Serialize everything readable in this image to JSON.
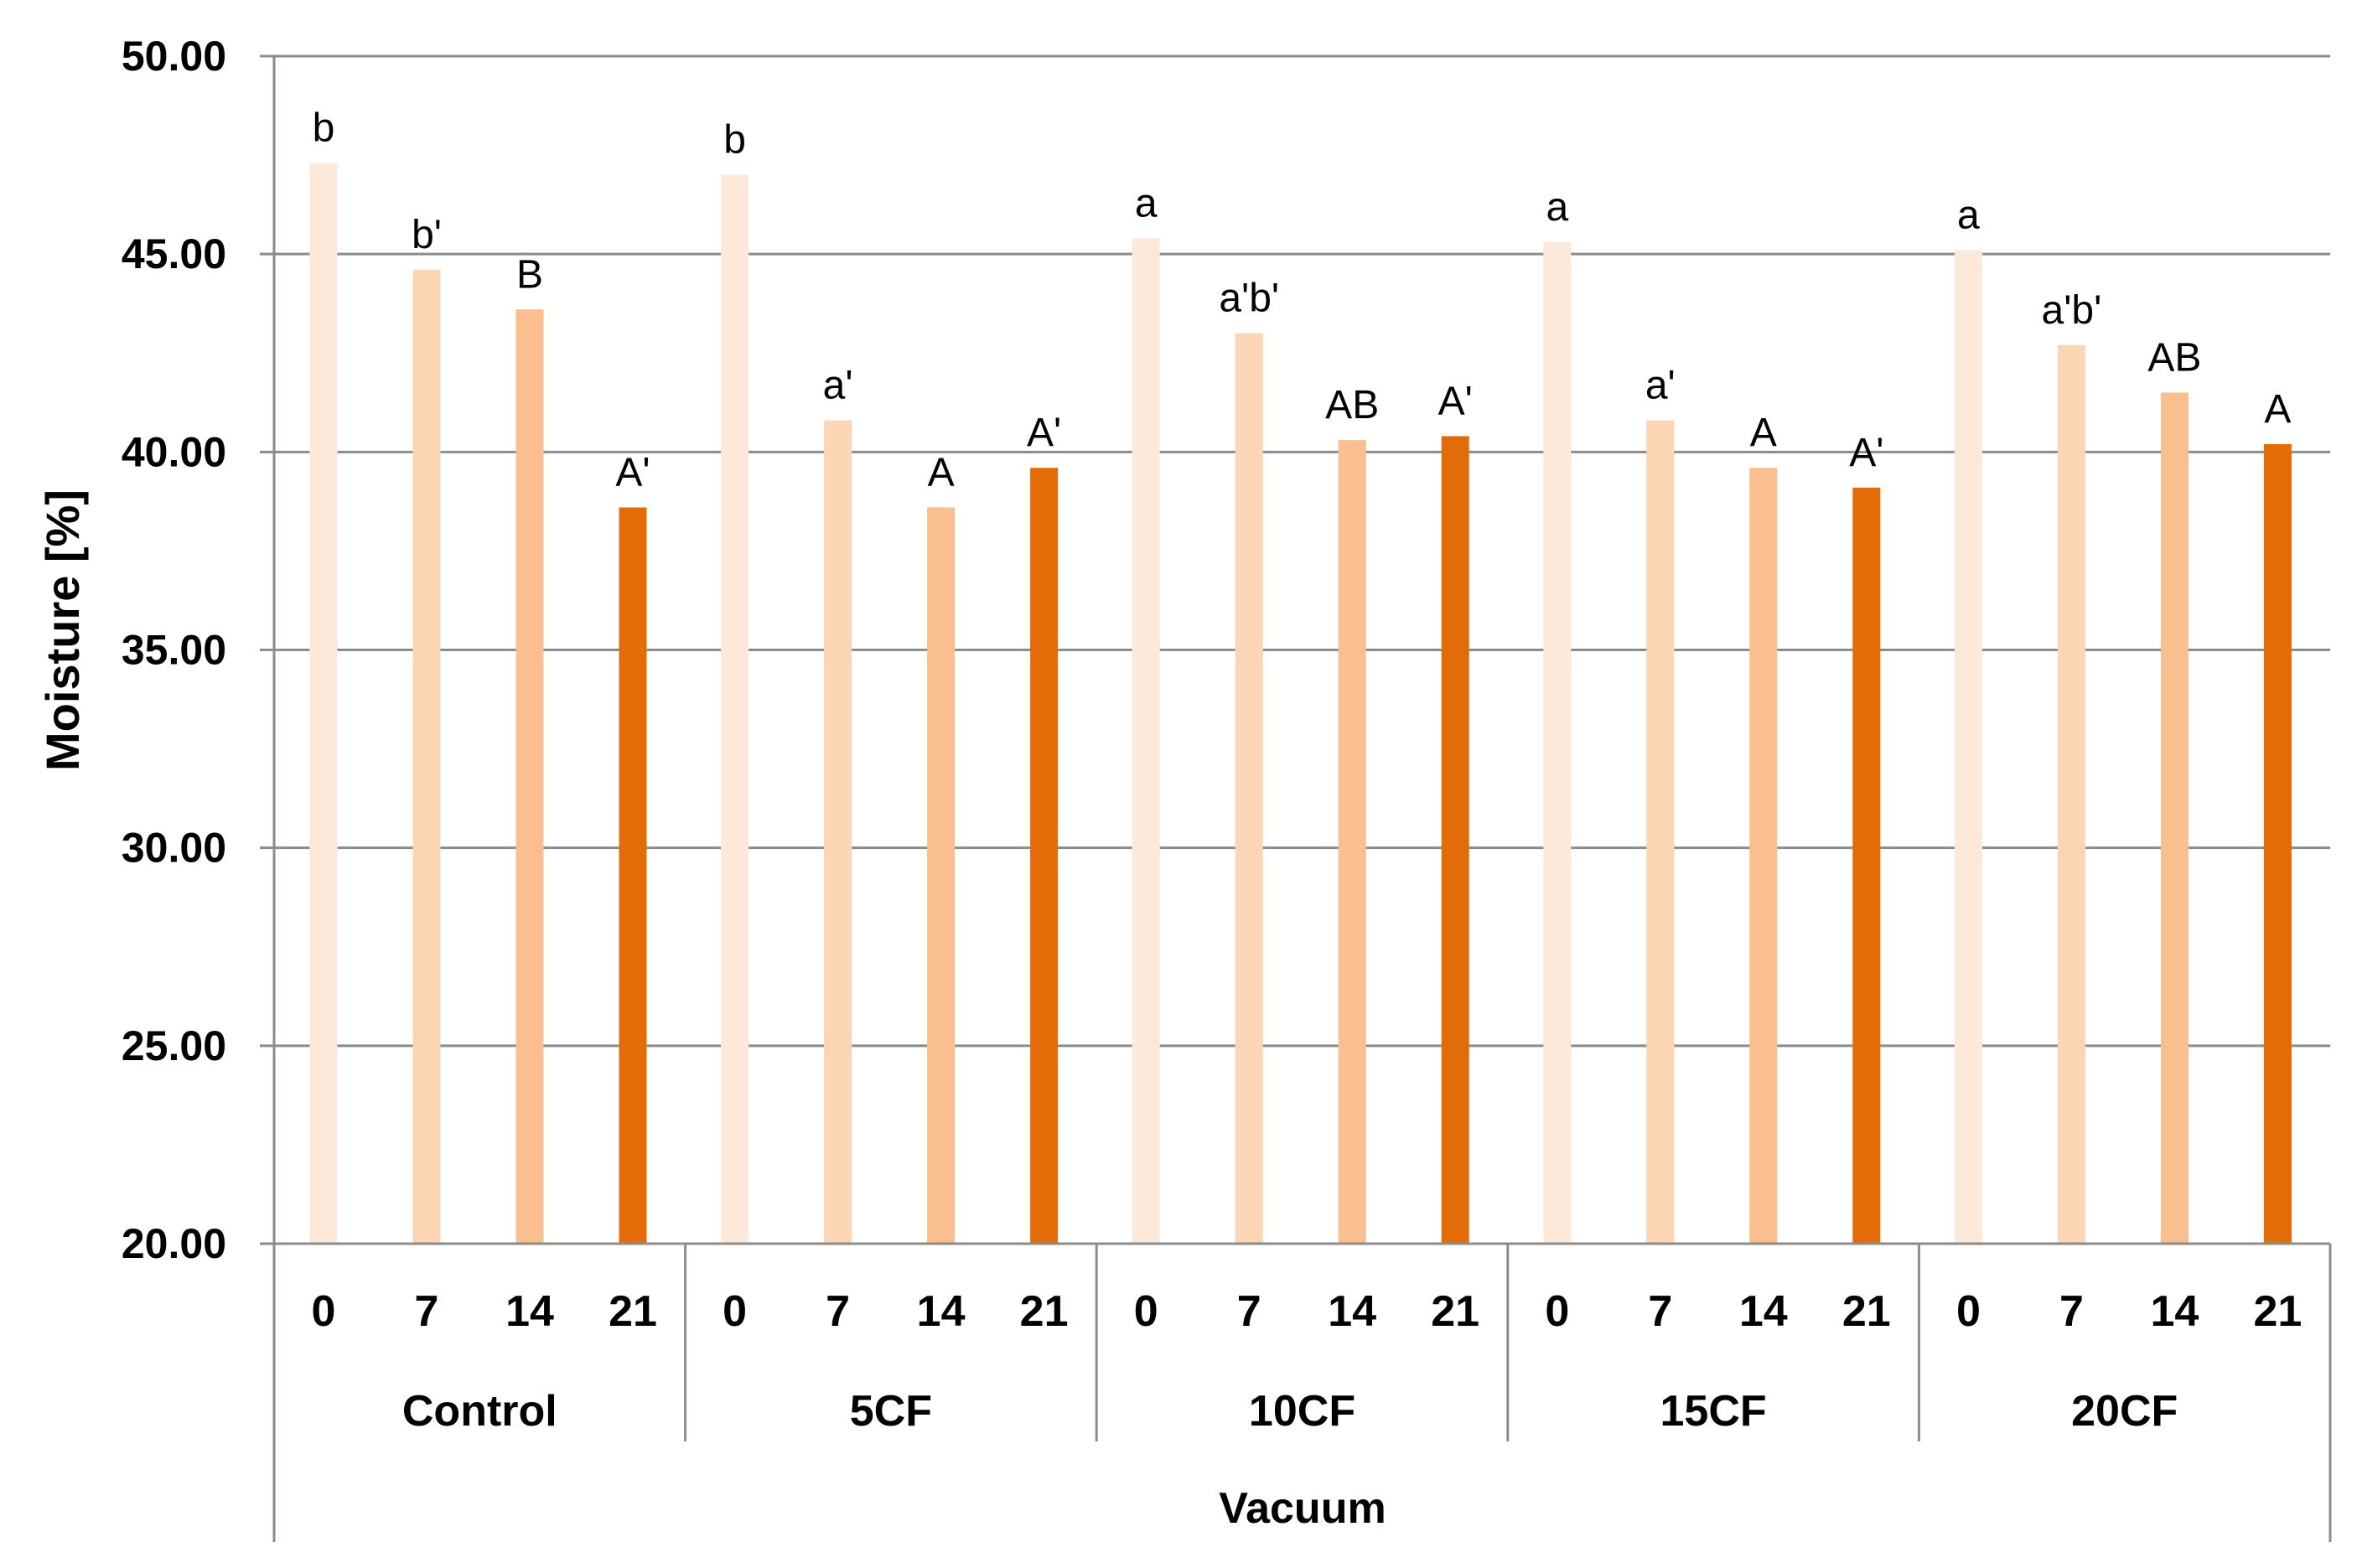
{
  "chart_data": {
    "type": "bar",
    "ylabel": "Moisture [%]",
    "ylim": [
      20,
      50
    ],
    "yticks": [
      "20.00",
      "25.00",
      "30.00",
      "35.00",
      "40.00",
      "45.00",
      "50.00"
    ],
    "grid": true,
    "outer_label": "Vacuum",
    "colors": [
      "#fde9d9",
      "#fcd5b4",
      "#fabf8f",
      "#e36c09"
    ],
    "groups": [
      {
        "name": "Control",
        "bars": [
          {
            "day": "0",
            "value": 47.3,
            "label": "b"
          },
          {
            "day": "7",
            "value": 44.6,
            "label": "b'"
          },
          {
            "day": "14",
            "value": 43.6,
            "label": "B"
          },
          {
            "day": "21",
            "value": 38.6,
            "label": "A'"
          }
        ]
      },
      {
        "name": "5CF",
        "bars": [
          {
            "day": "0",
            "value": 47.0,
            "label": "b"
          },
          {
            "day": "7",
            "value": 40.8,
            "label": "a'"
          },
          {
            "day": "14",
            "value": 38.6,
            "label": "A"
          },
          {
            "day": "21",
            "value": 39.6,
            "label": "A'"
          }
        ]
      },
      {
        "name": "10CF",
        "bars": [
          {
            "day": "0",
            "value": 45.4,
            "label": "a"
          },
          {
            "day": "7",
            "value": 43.0,
            "label": "a'b'"
          },
          {
            "day": "14",
            "value": 40.3,
            "label": "AB"
          },
          {
            "day": "21",
            "value": 40.4,
            "label": "A'"
          }
        ]
      },
      {
        "name": "15CF",
        "bars": [
          {
            "day": "0",
            "value": 45.3,
            "label": "a"
          },
          {
            "day": "7",
            "value": 40.8,
            "label": "a'"
          },
          {
            "day": "14",
            "value": 39.6,
            "label": "A"
          },
          {
            "day": "21",
            "value": 39.1,
            "label": "A'"
          }
        ]
      },
      {
        "name": "20CF",
        "bars": [
          {
            "day": "0",
            "value": 45.1,
            "label": "a"
          },
          {
            "day": "7",
            "value": 42.7,
            "label": "a'b'"
          },
          {
            "day": "14",
            "value": 41.5,
            "label": "AB"
          },
          {
            "day": "21",
            "value": 40.2,
            "label": "A"
          }
        ]
      }
    ]
  }
}
